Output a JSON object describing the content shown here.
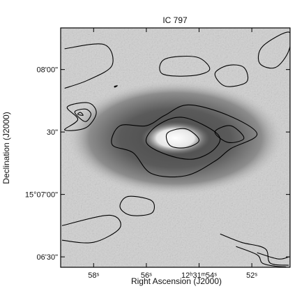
{
  "chart_data": {
    "type": "image-contour",
    "title": "IC 797",
    "xlabel": "Right Ascension (J2000)",
    "ylabel": "Declination (J2000)",
    "x_axis": {
      "unit": "seconds of RA (12h31m)",
      "range": [
        59.25,
        50.55
      ],
      "inverted": true,
      "ticks": [
        {
          "value": 58,
          "label": "58ˢ"
        },
        {
          "value": 56,
          "label": "56ˢ"
        },
        {
          "value": 54,
          "label": "12ʰ31ᵐ54ˢ"
        },
        {
          "value": 52,
          "label": "52ˢ"
        }
      ]
    },
    "y_axis": {
      "unit": "arcsec offset from 15°07'00\"",
      "range": [
        -35,
        80
      ],
      "ticks": [
        {
          "value": 60,
          "label": "08'00\""
        },
        {
          "value": 30,
          "label": "30\""
        },
        {
          "value": 0,
          "label": "15°07'00\""
        },
        {
          "value": -30,
          "label": "06'30\""
        }
      ]
    },
    "galaxy": {
      "center": [
        54.9,
        27
      ],
      "halo_radii": [
        4.2,
        28
      ],
      "core_radii": [
        1.3,
        8
      ]
    },
    "contours": [
      {
        "name": "c1",
        "points": [
          [
            59.1,
            70
          ],
          [
            57.6,
            72
          ],
          [
            57.3,
            62
          ],
          [
            58.2,
            55
          ],
          [
            59.1,
            51
          ]
        ],
        "closed": false
      },
      {
        "name": "c2",
        "points": [
          [
            55.4,
            58
          ],
          [
            55.3,
            65
          ],
          [
            54.1,
            66
          ],
          [
            53.6,
            60
          ],
          [
            54.3,
            57
          ]
        ],
        "closed": true
      },
      {
        "name": "c3",
        "points": [
          [
            53.0,
            52
          ],
          [
            52.2,
            54
          ],
          [
            52.3,
            61
          ],
          [
            52.9,
            62
          ],
          [
            53.4,
            58
          ]
        ],
        "closed": true
      },
      {
        "name": "c4",
        "points": [
          [
            51.6,
            71
          ],
          [
            50.6,
            78
          ],
          [
            50.6,
            69
          ],
          [
            51.1,
            61
          ],
          [
            51.7,
            63
          ]
        ],
        "closed": true
      },
      {
        "name": "c5",
        "points": [
          [
            57.2,
            52.0
          ],
          [
            57.2,
            51.5
          ],
          [
            57.1,
            52.2
          ]
        ],
        "closed": true
      },
      {
        "name": "c6",
        "points": [
          [
            58.6,
            36
          ],
          [
            59.0,
            42
          ],
          [
            58.2,
            44
          ],
          [
            57.9,
            39
          ],
          [
            58.3,
            32
          ],
          [
            59.1,
            31
          ]
        ],
        "closed": true
      },
      {
        "name": "c7",
        "points": [
          [
            58.6,
            37.5
          ],
          [
            58.7,
            40
          ],
          [
            58.3,
            41
          ],
          [
            58.1,
            38.5
          ],
          [
            58.3,
            35
          ]
        ],
        "closed": true
      },
      {
        "name": "c8",
        "points": [
          [
            58.6,
            38.5
          ],
          [
            58.5,
            39.4
          ],
          [
            58.4,
            38.0
          ]
        ],
        "closed": true
      },
      {
        "name": "c9",
        "points": [
          [
            55.3,
            38
          ],
          [
            54.4,
            43
          ],
          [
            52.9,
            38
          ],
          [
            51.8,
            29
          ],
          [
            52.8,
            22
          ],
          [
            53.4,
            16
          ],
          [
            54.5,
            9
          ],
          [
            55.8,
            10
          ],
          [
            56.5,
            20
          ],
          [
            57.3,
            24
          ],
          [
            57.0,
            33
          ],
          [
            56.0,
            33
          ]
        ],
        "closed": true
      },
      {
        "name": "c10",
        "points": [
          [
            55.6,
            33
          ],
          [
            54.6,
            37
          ],
          [
            53.3,
            29
          ],
          [
            53.4,
            22
          ],
          [
            54.2,
            17
          ],
          [
            55.2,
            19
          ],
          [
            56.0,
            25
          ]
        ],
        "closed": true
      },
      {
        "name": "c11",
        "points": [
          [
            55.2,
            29.5
          ],
          [
            54.5,
            31.5
          ],
          [
            54.0,
            26
          ],
          [
            54.5,
            22.5
          ],
          [
            55.1,
            23.5
          ]
        ],
        "closed": true
      },
      {
        "name": "c12",
        "points": [
          [
            53.4,
            30
          ],
          [
            52.8,
            33
          ],
          [
            52.3,
            27
          ],
          [
            52.9,
            25
          ]
        ],
        "closed": true
      },
      {
        "name": "c13",
        "points": [
          [
            59.2,
            -15
          ],
          [
            57.4,
            -10
          ],
          [
            57.0,
            -16
          ],
          [
            58.0,
            -23
          ],
          [
            59.2,
            -22
          ]
        ],
        "closed": false
      },
      {
        "name": "c14",
        "points": [
          [
            56.7,
            -1
          ],
          [
            55.8,
            -3
          ],
          [
            55.8,
            -9
          ],
          [
            56.6,
            -10
          ],
          [
            57.0,
            -6
          ]
        ],
        "closed": true
      },
      {
        "name": "c15",
        "points": [
          [
            53.2,
            -19
          ],
          [
            52.4,
            -23
          ],
          [
            51.5,
            -26
          ],
          [
            51.3,
            -33
          ],
          [
            50.6,
            -34
          ]
        ],
        "closed": false
      },
      {
        "name": "c16",
        "points": [
          [
            52.6,
            -25
          ],
          [
            51.8,
            -29
          ],
          [
            51.6,
            -33
          ],
          [
            51.1,
            -34.5
          ],
          [
            50.7,
            -34.8
          ]
        ],
        "closed": false
      },
      {
        "name": "c17",
        "points": [
          [
            51.8,
            -28
          ],
          [
            51.0,
            -31
          ],
          [
            50.6,
            -30
          ]
        ],
        "closed": false
      }
    ],
    "grid": false
  }
}
